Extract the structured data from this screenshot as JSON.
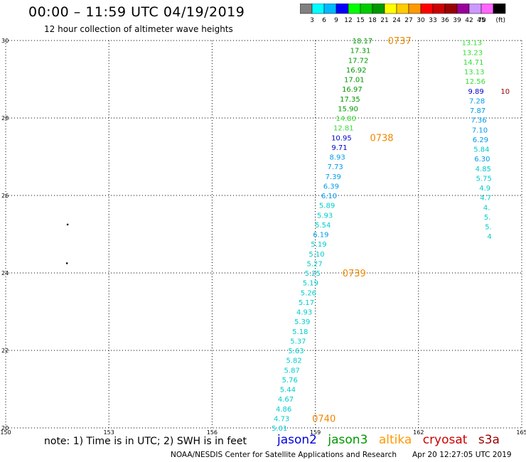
{
  "header": {
    "title": "00:00 – 11:59 UTC 04/19/2019",
    "subtitle": "12 hour collection of altimeter wave heights"
  },
  "colorbar": {
    "labels": [
      "3",
      "6",
      "9",
      "12",
      "15",
      "18",
      "21",
      "24",
      "27",
      "30",
      "33",
      "36",
      "39",
      "42",
      "45",
      "70"
    ],
    "unit": "(ft)",
    "colors": [
      "#808080",
      "#00ffff",
      "#00b8ff",
      "#0000ff",
      "#00ff00",
      "#00cc00",
      "#009900",
      "#ffff00",
      "#ffcc00",
      "#ff9900",
      "#ff0000",
      "#cc0000",
      "#990000",
      "#990099",
      "#cc99ff",
      "#ff66ff",
      "#000000"
    ]
  },
  "chart_data": {
    "type": "scatter",
    "xlim": [
      150,
      165
    ],
    "ylim": [
      20,
      30
    ],
    "x_ticks": [
      "150",
      "153",
      "156",
      "159",
      "162",
      "165"
    ],
    "y_ticks": [
      "20",
      "22",
      "24",
      "26",
      "28",
      "30"
    ],
    "grid": true,
    "points": [
      {
        "x": 160.37,
        "y": 30.0,
        "label": "18.17",
        "color": "#009900"
      },
      {
        "x": 160.31,
        "y": 29.75,
        "label": "17.31",
        "color": "#009900"
      },
      {
        "x": 160.25,
        "y": 29.5,
        "label": "17.72",
        "color": "#009900"
      },
      {
        "x": 160.19,
        "y": 29.25,
        "label": "16.92",
        "color": "#009900"
      },
      {
        "x": 160.13,
        "y": 29.0,
        "label": "17.01",
        "color": "#009900"
      },
      {
        "x": 160.07,
        "y": 28.75,
        "label": "16.97",
        "color": "#009900"
      },
      {
        "x": 160.01,
        "y": 28.5,
        "label": "17.35",
        "color": "#009900"
      },
      {
        "x": 159.95,
        "y": 28.25,
        "label": "15.90",
        "color": "#009900"
      },
      {
        "x": 159.89,
        "y": 28.0,
        "label": "14.80",
        "color": "#33dd33"
      },
      {
        "x": 159.82,
        "y": 27.75,
        "label": "12.81",
        "color": "#33dd33"
      },
      {
        "x": 159.76,
        "y": 27.5,
        "label": "10.95",
        "color": "#0000cc"
      },
      {
        "x": 159.7,
        "y": 27.25,
        "label": "9.71",
        "color": "#0000cc"
      },
      {
        "x": 159.64,
        "y": 27.0,
        "label": "8.93",
        "color": "#0099ee"
      },
      {
        "x": 159.58,
        "y": 26.75,
        "label": "7.73",
        "color": "#0099ee"
      },
      {
        "x": 159.52,
        "y": 26.5,
        "label": "7.39",
        "color": "#0099ee"
      },
      {
        "x": 159.46,
        "y": 26.25,
        "label": "6.39",
        "color": "#0099ee"
      },
      {
        "x": 159.4,
        "y": 26.0,
        "label": "6.10",
        "color": "#0099ee"
      },
      {
        "x": 159.34,
        "y": 25.75,
        "label": "5.89",
        "color": "#00cccc"
      },
      {
        "x": 159.28,
        "y": 25.5,
        "label": "5.93",
        "color": "#00cccc"
      },
      {
        "x": 159.22,
        "y": 25.25,
        "label": "5.54",
        "color": "#00cccc"
      },
      {
        "x": 159.16,
        "y": 25.0,
        "label": "6.19",
        "color": "#0099ee"
      },
      {
        "x": 159.1,
        "y": 24.75,
        "label": "5.19",
        "color": "#00cccc"
      },
      {
        "x": 159.04,
        "y": 24.5,
        "label": "5.10",
        "color": "#00cccc"
      },
      {
        "x": 158.98,
        "y": 24.25,
        "label": "5.27",
        "color": "#00cccc"
      },
      {
        "x": 158.92,
        "y": 24.0,
        "label": "5.25",
        "color": "#00cccc"
      },
      {
        "x": 158.86,
        "y": 23.75,
        "label": "5.19",
        "color": "#00cccc"
      },
      {
        "x": 158.8,
        "y": 23.5,
        "label": "5.26",
        "color": "#00cccc"
      },
      {
        "x": 158.74,
        "y": 23.25,
        "label": "5.17",
        "color": "#00cccc"
      },
      {
        "x": 158.68,
        "y": 23.0,
        "label": "4.93",
        "color": "#00cccc"
      },
      {
        "x": 158.62,
        "y": 22.75,
        "label": "5.39",
        "color": "#00cccc"
      },
      {
        "x": 158.56,
        "y": 22.5,
        "label": "5.18",
        "color": "#00cccc"
      },
      {
        "x": 158.5,
        "y": 22.25,
        "label": "5.37",
        "color": "#00cccc"
      },
      {
        "x": 158.44,
        "y": 22.0,
        "label": "5.63",
        "color": "#00cccc"
      },
      {
        "x": 158.38,
        "y": 21.75,
        "label": "5.82",
        "color": "#00cccc"
      },
      {
        "x": 158.32,
        "y": 21.5,
        "label": "5.87",
        "color": "#00cccc"
      },
      {
        "x": 158.26,
        "y": 21.25,
        "label": "5.76",
        "color": "#00cccc"
      },
      {
        "x": 158.2,
        "y": 21.0,
        "label": "5.44",
        "color": "#00cccc"
      },
      {
        "x": 158.14,
        "y": 20.75,
        "label": "4.67",
        "color": "#00cccc"
      },
      {
        "x": 158.08,
        "y": 20.5,
        "label": "4.86",
        "color": "#00cccc"
      },
      {
        "x": 158.02,
        "y": 20.25,
        "label": "4.73",
        "color": "#00cccc"
      },
      {
        "x": 157.96,
        "y": 20.0,
        "label": "5.01",
        "color": "#00cccc"
      },
      {
        "x": 163.55,
        "y": 29.95,
        "label": "13.13",
        "color": "#33dd33"
      },
      {
        "x": 163.57,
        "y": 29.7,
        "label": "13.23",
        "color": "#33dd33"
      },
      {
        "x": 163.6,
        "y": 29.45,
        "label": "14.71",
        "color": "#33dd33"
      },
      {
        "x": 163.62,
        "y": 29.2,
        "label": "13.13",
        "color": "#33dd33"
      },
      {
        "x": 163.65,
        "y": 28.95,
        "label": "12.56",
        "color": "#33dd33"
      },
      {
        "x": 163.67,
        "y": 28.7,
        "label": "9.89",
        "color": "#0000cc"
      },
      {
        "x": 163.7,
        "y": 28.45,
        "label": "7.28",
        "color": "#0099ee"
      },
      {
        "x": 163.72,
        "y": 28.2,
        "label": "7.87",
        "color": "#0099ee"
      },
      {
        "x": 163.75,
        "y": 27.95,
        "label": "7.36",
        "color": "#0099ee"
      },
      {
        "x": 163.78,
        "y": 27.7,
        "label": "7.10",
        "color": "#0099ee"
      },
      {
        "x": 163.8,
        "y": 27.45,
        "label": "6.29",
        "color": "#0099ee"
      },
      {
        "x": 163.83,
        "y": 27.2,
        "label": "5.84",
        "color": "#00cccc"
      },
      {
        "x": 163.85,
        "y": 26.95,
        "label": "6.30",
        "color": "#0099ee"
      },
      {
        "x": 163.88,
        "y": 26.7,
        "label": "4.85",
        "color": "#00cccc"
      },
      {
        "x": 163.9,
        "y": 26.45,
        "label": "5.75",
        "color": "#00cccc"
      },
      {
        "x": 163.93,
        "y": 26.2,
        "label": "4.9",
        "color": "#00cccc"
      },
      {
        "x": 163.95,
        "y": 25.95,
        "label": "4.7",
        "color": "#00cccc"
      },
      {
        "x": 163.98,
        "y": 25.7,
        "label": "4.",
        "color": "#00cccc"
      },
      {
        "x": 164.0,
        "y": 25.45,
        "label": "5.",
        "color": "#00cccc"
      },
      {
        "x": 164.03,
        "y": 25.2,
        "label": "5.",
        "color": "#00cccc"
      },
      {
        "x": 164.06,
        "y": 24.95,
        "label": "4",
        "color": "#00cccc"
      },
      {
        "x": 164.52,
        "y": 28.7,
        "label": "10",
        "color": "#990000"
      },
      {
        "x": 151.8,
        "y": 25.25,
        "label": "",
        "color": "#000000"
      },
      {
        "x": 151.78,
        "y": 24.25,
        "label": "",
        "color": "#000000"
      }
    ],
    "time_labels": [
      {
        "x": 161.45,
        "y": 30.0,
        "label": "0737"
      },
      {
        "x": 160.93,
        "y": 27.5,
        "label": "0738"
      },
      {
        "x": 160.13,
        "y": 24.0,
        "label": "0739"
      },
      {
        "x": 159.25,
        "y": 20.25,
        "label": "0740"
      }
    ],
    "time_label_color": "#ee8800"
  },
  "note": "note: 1) Time is in UTC; 2) SWH is in feet",
  "legend": [
    {
      "name": "jason2",
      "color": "#0000dd"
    },
    {
      "name": "jason3",
      "color": "#009900"
    },
    {
      "name": "altika",
      "color": "#ff9900"
    },
    {
      "name": "cryosat",
      "color": "#cc0000"
    },
    {
      "name": "s3a",
      "color": "#990000"
    }
  ],
  "footer": {
    "credit": "NOAA/NESDIS Center for Satellite Applications and Research",
    "timestamp": "Apr 20 12:27:05 UTC 2019"
  }
}
